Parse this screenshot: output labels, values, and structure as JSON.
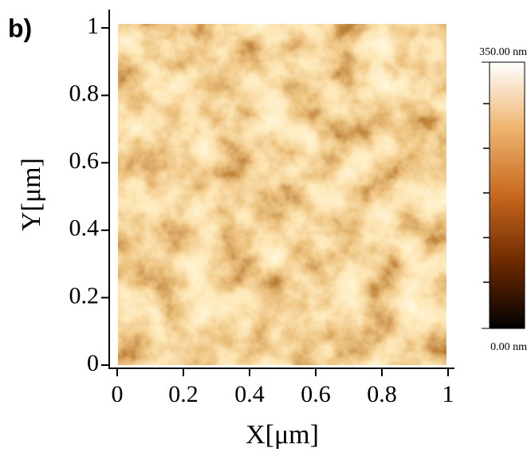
{
  "chart_data": {
    "type": "heatmap",
    "panel_label": "b)",
    "xlabel": "X[μm]",
    "ylabel": "Y[μm]",
    "xlim": [
      0,
      1
    ],
    "ylim": [
      0,
      1
    ],
    "xticks": [
      0,
      0.2,
      0.4,
      0.6,
      0.8,
      1
    ],
    "yticks": [
      0,
      0.2,
      0.4,
      0.6,
      0.8,
      1
    ],
    "colorbar": {
      "lim": [
        0,
        350
      ],
      "ticks": [
        {
          "value": 0,
          "label": "0.00 nm"
        },
        {
          "value": 350,
          "label": "350.00 nm"
        }
      ],
      "colors": [
        "#000000",
        "#6e2a00",
        "#c8681e",
        "#eeb46e",
        "#ffffff"
      ]
    }
  }
}
